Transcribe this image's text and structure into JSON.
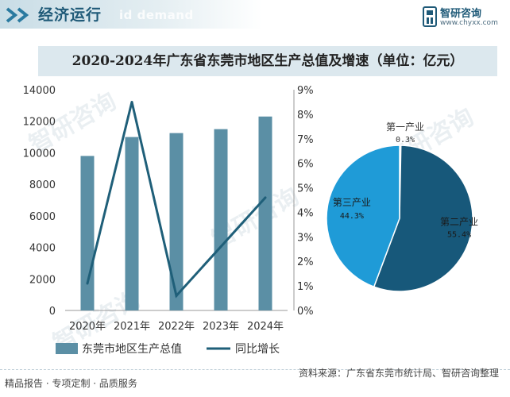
{
  "header": {
    "section_title": "经济运行",
    "watermark_text": "id demand",
    "brand_name": "智研咨询",
    "brand_url": "www.chyxx.com"
  },
  "watermark": "智研咨询",
  "chart_data": [
    {
      "type": "bar",
      "title": "2020-2024年广东省东莞市地区生产总值及增速（单位：亿元）",
      "categories": [
        "2020年",
        "2021年",
        "2022年",
        "2023年",
        "2024年"
      ],
      "series": [
        {
          "name": "东莞市地区生产总值",
          "type": "bar",
          "axis": "left",
          "color": "#5b8fa5",
          "values": [
            9800,
            11000,
            11250,
            11500,
            12300
          ]
        },
        {
          "name": "同比增长",
          "type": "line",
          "axis": "right",
          "color": "#1f5f79",
          "values": [
            1.1,
            8.5,
            0.6,
            2.6,
            4.6
          ]
        }
      ],
      "left_axis": {
        "min": 0,
        "max": 14000,
        "ticks": [
          "0",
          "2000",
          "4000",
          "6000",
          "8000",
          "10000",
          "12000",
          "14000"
        ]
      },
      "right_axis": {
        "min": 0,
        "max": 9,
        "ticks": [
          "0%",
          "1%",
          "2%",
          "3%",
          "4%",
          "5%",
          "6%",
          "7%",
          "8%",
          "9%"
        ]
      },
      "legend_position": "bottom",
      "grid": false
    },
    {
      "type": "pie",
      "slices": [
        {
          "label": "第一产业",
          "value": 0.3,
          "value_text": "0.3%",
          "color": "#5fa3c9"
        },
        {
          "label": "第二产业",
          "value": 55.4,
          "value_text": "55.4%",
          "color": "#17587a"
        },
        {
          "label": "第三产业",
          "value": 44.3,
          "value_text": "44.3%",
          "color": "#1f9bd7"
        }
      ]
    }
  ],
  "footer": {
    "left_text": "精品报告 · 专项定制 · 品质服务",
    "source_text": "资料来源：广东省东莞市统计局、智研咨询整理"
  }
}
